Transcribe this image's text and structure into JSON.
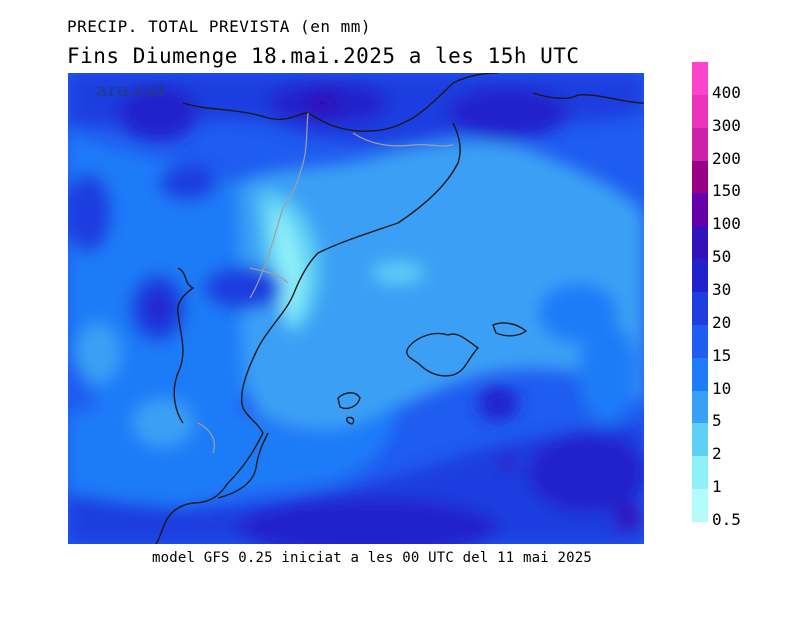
{
  "header": {
    "title_line1": "PRECIP. TOTAL PREVISTA (en mm)",
    "title_line2": "Fins Diumenge 18.mai.2025 a les 15h UTC"
  },
  "footer": {
    "model_caption": "model GFS 0.25 iniciat a les 00 UTC del 11 mai 2025"
  },
  "watermark": {
    "text": "ara.cat"
  },
  "legend": {
    "levels": [
      {
        "label": "400",
        "color": "#ff44cc"
      },
      {
        "label": "300",
        "color": "#ee33bb"
      },
      {
        "label": "200",
        "color": "#cc22aa"
      },
      {
        "label": "150",
        "color": "#990088"
      },
      {
        "label": "100",
        "color": "#6600aa"
      },
      {
        "label": "50",
        "color": "#3311bb"
      },
      {
        "label": "30",
        "color": "#2222cc"
      },
      {
        "label": "20",
        "color": "#1e3ee0"
      },
      {
        "label": "15",
        "color": "#1f5cf0"
      },
      {
        "label": "10",
        "color": "#1f7cf8"
      },
      {
        "label": "5",
        "color": "#3aa0f5"
      },
      {
        "label": "2",
        "color": "#5fd0f5"
      },
      {
        "label": "1",
        "color": "#8ff0f8"
      },
      {
        "label": "0.5",
        "color": "#b4fcfc"
      }
    ]
  },
  "map": {
    "base_color": "#1f5cf0",
    "border_color": "#1a1a1a",
    "region_border_color": "#a0a0a0"
  }
}
